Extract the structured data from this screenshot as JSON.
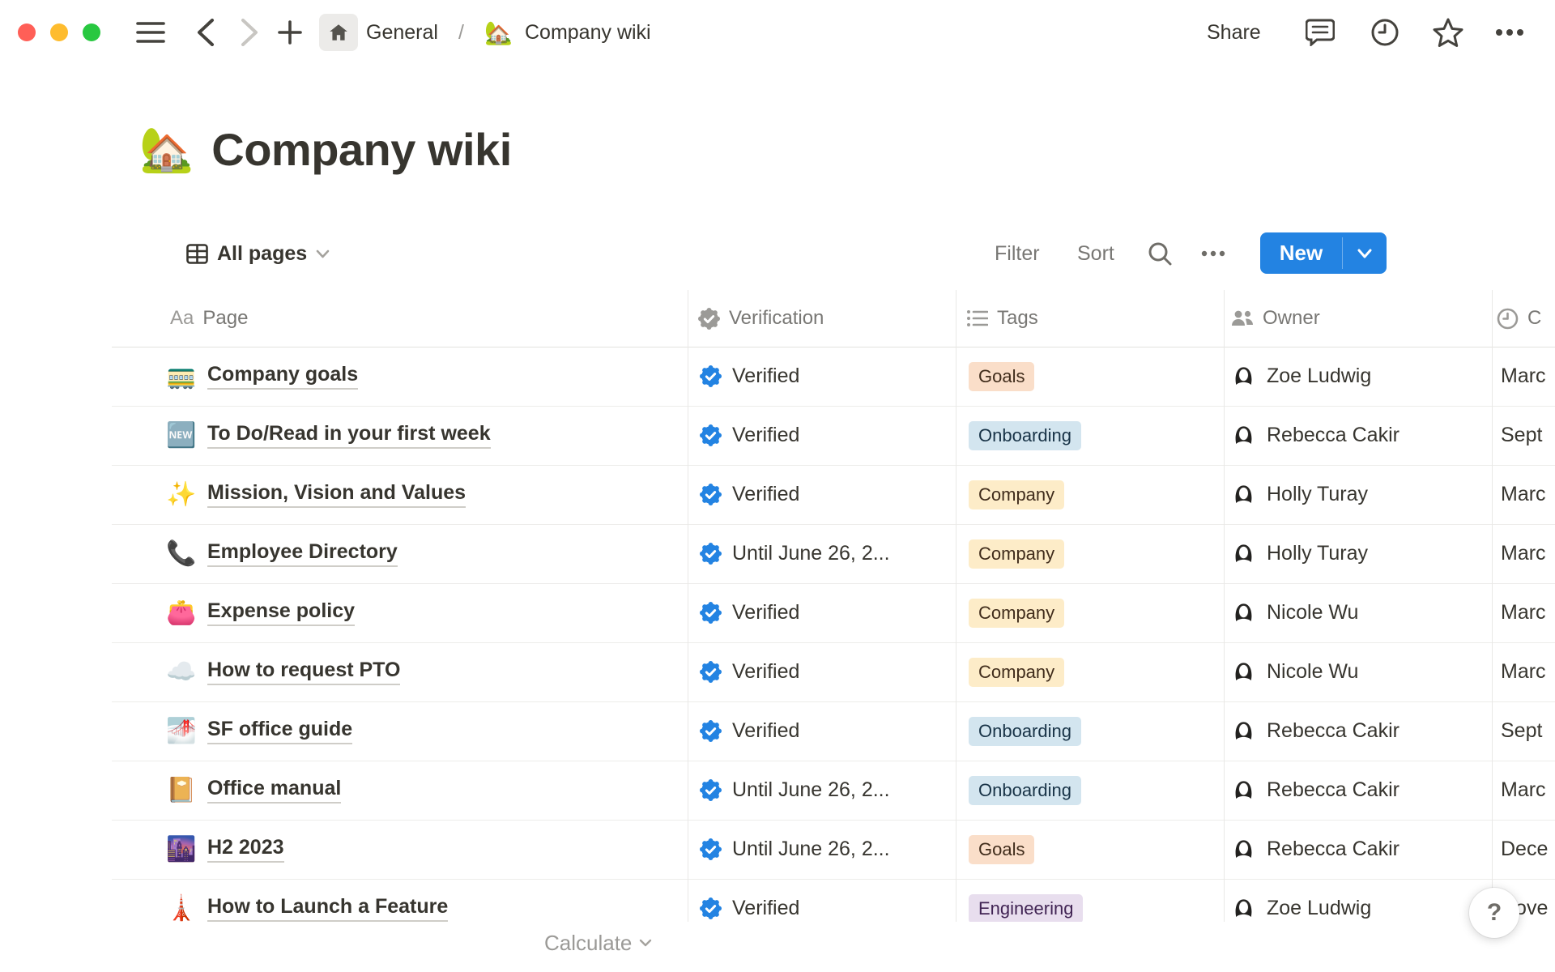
{
  "window": {
    "breadcrumb": {
      "section": "General",
      "separator": "/",
      "page_icon": "🏡",
      "page": "Company wiki"
    },
    "share_label": "Share"
  },
  "page": {
    "icon": "🏡",
    "title": "Company wiki"
  },
  "toolbar": {
    "view_label": "All pages",
    "filter_label": "Filter",
    "sort_label": "Sort",
    "new_label": "New"
  },
  "table": {
    "columns": [
      {
        "label": "Page",
        "icon": "text-Aa"
      },
      {
        "label": "Verification",
        "icon": "seal-check"
      },
      {
        "label": "Tags",
        "icon": "bulleted-list"
      },
      {
        "label": "Owner",
        "icon": "people"
      },
      {
        "label": "C",
        "icon": "clock"
      }
    ],
    "rows": [
      {
        "icon": "🚃",
        "page": "Company goals",
        "verification": "Verified",
        "tag": "Goals",
        "tag_color": "orange",
        "owner": "Zoe Ludwig",
        "date": "Marc"
      },
      {
        "icon": "🆕",
        "page": "To Do/Read in your first week",
        "verification": "Verified",
        "tag": "Onboarding",
        "tag_color": "blue",
        "owner": "Rebecca Cakir",
        "date": "Sept"
      },
      {
        "icon": "✨",
        "page": "Mission, Vision and Values",
        "verification": "Verified",
        "tag": "Company",
        "tag_color": "yellow",
        "owner": "Holly Turay",
        "date": "Marc"
      },
      {
        "icon": "📞",
        "page": "Employee Directory",
        "verification": "Until June 26, 2...",
        "tag": "Company",
        "tag_color": "yellow",
        "owner": "Holly Turay",
        "date": "Marc"
      },
      {
        "icon": "👛",
        "page": "Expense policy",
        "verification": "Verified",
        "tag": "Company",
        "tag_color": "yellow",
        "owner": "Nicole Wu",
        "date": "Marc"
      },
      {
        "icon": "☁️",
        "page": "How to request PTO",
        "verification": "Verified",
        "tag": "Company",
        "tag_color": "yellow",
        "owner": "Nicole Wu",
        "date": "Marc"
      },
      {
        "icon": "🌁",
        "page": "SF office guide",
        "verification": "Verified",
        "tag": "Onboarding",
        "tag_color": "blue",
        "owner": "Rebecca Cakir",
        "date": "Sept"
      },
      {
        "icon": "📔",
        "page": "Office manual",
        "verification": "Until June 26, 2...",
        "tag": "Onboarding",
        "tag_color": "blue",
        "owner": "Rebecca Cakir",
        "date": "Marc"
      },
      {
        "icon": "🌆",
        "page": "H2 2023",
        "verification": "Until June 26, 2...",
        "tag": "Goals",
        "tag_color": "orange",
        "owner": "Rebecca Cakir",
        "date": "Dece"
      },
      {
        "icon": "🗼",
        "page": "How to Launch a Feature",
        "verification": "Verified",
        "tag": "Engineering",
        "tag_color": "purple",
        "owner": "Zoe Ludwig",
        "date": "Nove"
      }
    ]
  },
  "footer": {
    "calculate_label": "Calculate"
  },
  "help_label": "?",
  "colors": {
    "accent_blue": "#2383E2",
    "verified_badge": "#2383E2",
    "text_primary": "#37352F",
    "text_gray": "#787774",
    "traffic_red": "#FF5F57",
    "traffic_yellow": "#FEBC2E",
    "traffic_green": "#28C840",
    "tag_orange_bg": "#FADEC9",
    "tag_blue_bg": "#D3E5EF",
    "tag_yellow_bg": "#FDECC8",
    "tag_purple_bg": "#E8DEEE"
  }
}
